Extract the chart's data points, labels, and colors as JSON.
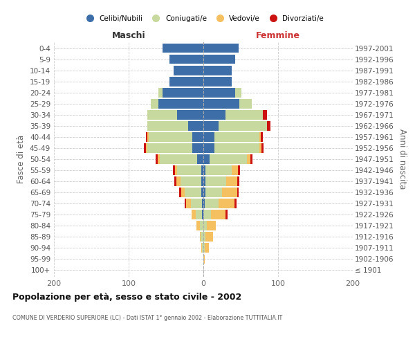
{
  "age_groups": [
    "100+",
    "95-99",
    "90-94",
    "85-89",
    "80-84",
    "75-79",
    "70-74",
    "65-69",
    "60-64",
    "55-59",
    "50-54",
    "45-49",
    "40-44",
    "35-39",
    "30-34",
    "25-29",
    "20-24",
    "15-19",
    "10-14",
    "5-9",
    "0-4"
  ],
  "birth_years": [
    "≤ 1901",
    "1902-1906",
    "1907-1911",
    "1912-1916",
    "1917-1921",
    "1922-1926",
    "1927-1931",
    "1932-1936",
    "1937-1941",
    "1942-1946",
    "1947-1951",
    "1952-1956",
    "1957-1961",
    "1962-1966",
    "1967-1971",
    "1972-1976",
    "1977-1981",
    "1982-1986",
    "1987-1991",
    "1992-1996",
    "1997-2001"
  ],
  "maschi": {
    "celibi": [
      0,
      0,
      0,
      0,
      0,
      2,
      2,
      3,
      3,
      3,
      8,
      15,
      15,
      20,
      35,
      60,
      55,
      45,
      40,
      45,
      55
    ],
    "coniugati": [
      0,
      0,
      2,
      4,
      5,
      8,
      15,
      22,
      28,
      32,
      50,
      60,
      58,
      55,
      40,
      10,
      5,
      0,
      0,
      0,
      0
    ],
    "vedovi": [
      0,
      0,
      1,
      1,
      4,
      6,
      6,
      5,
      5,
      3,
      3,
      2,
      2,
      0,
      0,
      0,
      0,
      0,
      0,
      0,
      0
    ],
    "divorziati": [
      0,
      0,
      0,
      0,
      0,
      0,
      2,
      2,
      3,
      3,
      3,
      3,
      2,
      0,
      0,
      0,
      0,
      0,
      0,
      0,
      0
    ]
  },
  "femmine": {
    "nubili": [
      0,
      0,
      0,
      0,
      0,
      0,
      2,
      3,
      3,
      3,
      8,
      15,
      15,
      20,
      30,
      48,
      43,
      38,
      38,
      43,
      47
    ],
    "coniugate": [
      0,
      0,
      2,
      3,
      5,
      10,
      18,
      22,
      28,
      35,
      50,
      60,
      60,
      65,
      50,
      17,
      8,
      0,
      0,
      0,
      0
    ],
    "vedove": [
      0,
      2,
      5,
      10,
      12,
      20,
      22,
      20,
      14,
      8,
      5,
      3,
      2,
      0,
      0,
      0,
      0,
      0,
      0,
      0,
      0
    ],
    "divorziate": [
      0,
      0,
      0,
      0,
      0,
      2,
      2,
      2,
      3,
      3,
      3,
      3,
      3,
      5,
      5,
      0,
      0,
      0,
      0,
      0,
      0
    ]
  },
  "colors": {
    "celibi": "#3d6ea8",
    "coniugati": "#c8d9a0",
    "vedovi": "#f5c060",
    "divorziati": "#cc1111"
  },
  "xlim": 200,
  "title": "Popolazione per età, sesso e stato civile - 2002",
  "subtitle": "COMUNE DI VERDERIO SUPERIORE (LC) - Dati ISTAT 1° gennaio 2002 - Elaborazione TUTTITALIA.IT",
  "ylabel_left": "Fasce di età",
  "ylabel_right": "Anni di nascita",
  "label_maschi": "Maschi",
  "label_femmine": "Femmine",
  "legend_labels": [
    "Celibi/Nubili",
    "Coniugati/e",
    "Vedovi/e",
    "Divorziati/e"
  ],
  "bg_color": "#ffffff",
  "grid_color": "#cccccc"
}
